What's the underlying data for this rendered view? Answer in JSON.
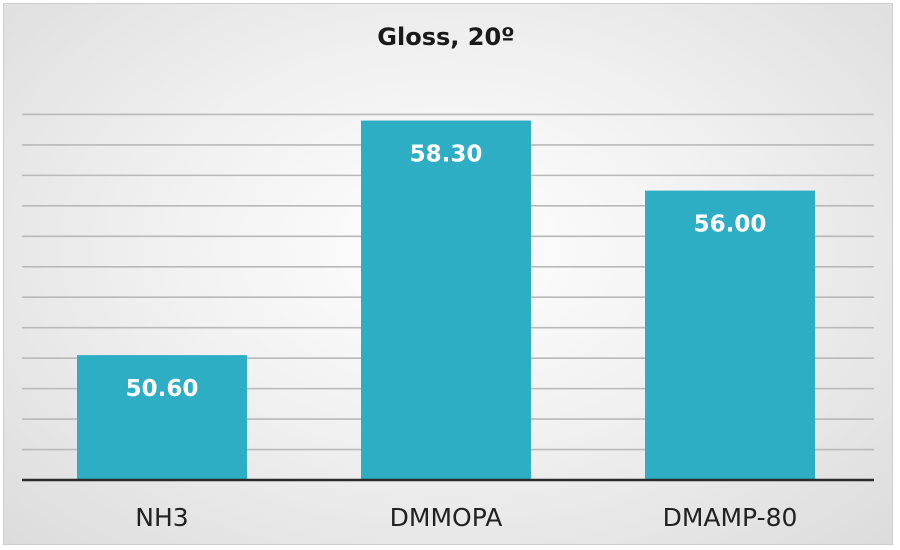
{
  "chart_data": {
    "type": "bar",
    "title": "Gloss, 20º",
    "categories": [
      "NH3",
      "DMMOPA",
      "DMAMP-80"
    ],
    "values": [
      50.6,
      58.3,
      56.0
    ],
    "value_labels": [
      "50.60",
      "58.30",
      "56.00"
    ],
    "xlabel": "",
    "ylabel": "",
    "ylim": [
      46.5,
      59.5
    ],
    "grid_values": [
      47.5,
      48.5,
      49.5,
      50.5,
      51.5,
      52.5,
      53.5,
      54.5,
      55.5,
      56.5,
      57.5,
      58.5
    ],
    "grid": true,
    "legend": "none",
    "bar_color": "#2eaec4",
    "axis_color": "#2a2a2a",
    "grid_color": "#b9b9b9"
  }
}
